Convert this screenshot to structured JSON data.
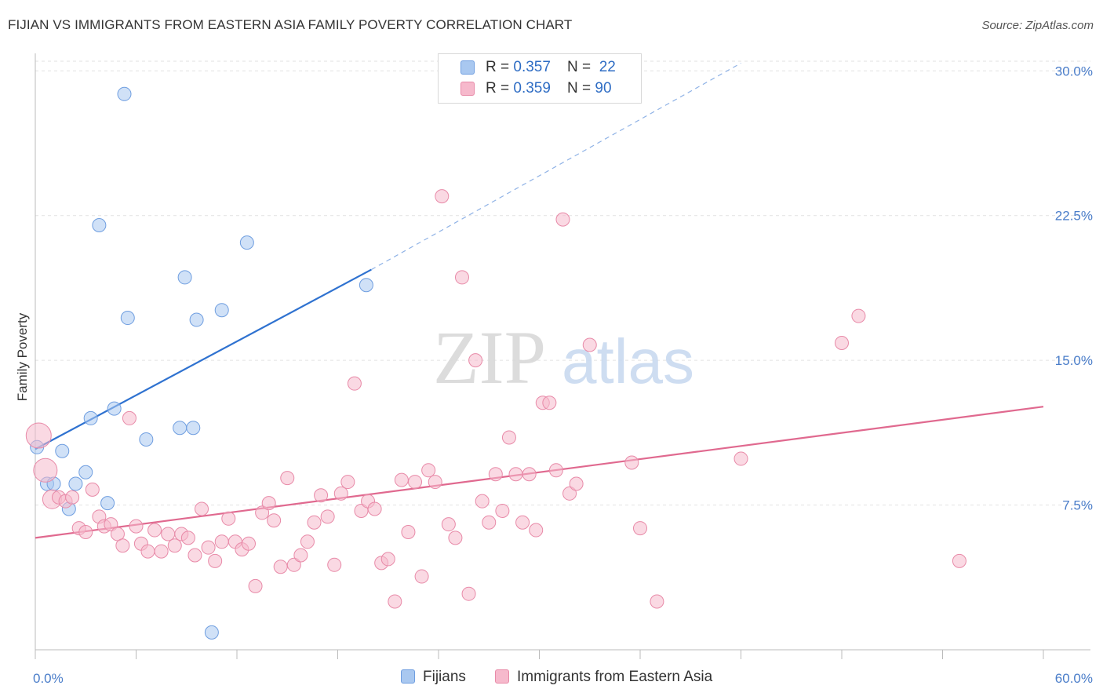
{
  "header": {
    "title": "FIJIAN VS IMMIGRANTS FROM EASTERN ASIA FAMILY POVERTY CORRELATION CHART",
    "source": "Source: ZipAtlas.com"
  },
  "watermark": {
    "zip": "ZIP",
    "atlas": "atlas"
  },
  "legend": {
    "rows": [
      {
        "r_label": "R = ",
        "r_value": "0.357",
        "n_label": "N = ",
        "n_value": "22",
        "color": "#a9c8f0",
        "border": "#6f9ee0"
      },
      {
        "r_label": "R = ",
        "r_value": "0.359",
        "n_label": "N = ",
        "n_value": "90",
        "color": "#f6b9cc",
        "border": "#e88aa8"
      }
    ]
  },
  "bottom_legend": {
    "series1": "Fijians",
    "series2": "Immigrants from Eastern Asia"
  },
  "chart_data": {
    "type": "scatter",
    "title": "FIJIAN VS IMMIGRANTS FROM EASTERN ASIA FAMILY POVERTY CORRELATION CHART",
    "xlabel": "",
    "ylabel": "Family Poverty",
    "xlim": [
      0,
      60
    ],
    "ylim": [
      0,
      30.5
    ],
    "x_tick_labels": [
      "0.0%",
      "60.0%"
    ],
    "y_ticks": [
      7.5,
      15.0,
      22.5,
      30.0
    ],
    "y_tick_labels": [
      "7.5%",
      "15.0%",
      "22.5%",
      "30.0%"
    ],
    "grid": true,
    "legend_position": "top-center",
    "series": [
      {
        "name": "Fijians",
        "color": "#a9c8f0",
        "stroke": "#6f9ee0",
        "trend_color": "#2f72d0",
        "trend": {
          "x0": 0,
          "y0": 10.4,
          "x1": 20,
          "y1": 19.7,
          "dash_to_x": 42,
          "dash_to_y": 30.4
        },
        "points": [
          {
            "x": 0.1,
            "y": 10.5
          },
          {
            "x": 0.7,
            "y": 8.6
          },
          {
            "x": 1.1,
            "y": 8.6
          },
          {
            "x": 1.6,
            "y": 10.3
          },
          {
            "x": 2.0,
            "y": 7.3
          },
          {
            "x": 2.4,
            "y": 8.6
          },
          {
            "x": 3.0,
            "y": 9.2
          },
          {
            "x": 3.3,
            "y": 12.0
          },
          {
            "x": 3.8,
            "y": 22.0
          },
          {
            "x": 4.3,
            "y": 7.6
          },
          {
            "x": 4.7,
            "y": 12.5
          },
          {
            "x": 5.3,
            "y": 28.8
          },
          {
            "x": 5.5,
            "y": 17.2
          },
          {
            "x": 6.6,
            "y": 10.9
          },
          {
            "x": 8.6,
            "y": 11.5
          },
          {
            "x": 8.9,
            "y": 19.3
          },
          {
            "x": 9.4,
            "y": 11.5
          },
          {
            "x": 9.6,
            "y": 17.1
          },
          {
            "x": 10.5,
            "y": 0.9
          },
          {
            "x": 11.1,
            "y": 17.6
          },
          {
            "x": 12.6,
            "y": 21.1
          },
          {
            "x": 19.7,
            "y": 18.9
          }
        ]
      },
      {
        "name": "Immigrants from Eastern Asia",
        "color": "#f6b9cc",
        "stroke": "#e88aa8",
        "trend_color": "#e0698f",
        "trend": {
          "x0": 0,
          "y0": 5.8,
          "x1": 60,
          "y1": 12.6
        },
        "points": [
          {
            "x": 0.2,
            "y": 11.1,
            "r": 16
          },
          {
            "x": 0.6,
            "y": 9.3,
            "r": 15
          },
          {
            "x": 1.0,
            "y": 7.8,
            "r": 12
          },
          {
            "x": 1.4,
            "y": 7.9
          },
          {
            "x": 1.8,
            "y": 7.7
          },
          {
            "x": 2.2,
            "y": 7.9
          },
          {
            "x": 2.6,
            "y": 6.3
          },
          {
            "x": 3.0,
            "y": 6.1
          },
          {
            "x": 3.4,
            "y": 8.3
          },
          {
            "x": 3.8,
            "y": 6.9
          },
          {
            "x": 4.1,
            "y": 6.4
          },
          {
            "x": 4.5,
            "y": 6.5
          },
          {
            "x": 4.9,
            "y": 6.0
          },
          {
            "x": 5.2,
            "y": 5.4
          },
          {
            "x": 5.6,
            "y": 12.0
          },
          {
            "x": 6.0,
            "y": 6.4
          },
          {
            "x": 6.3,
            "y": 5.5
          },
          {
            "x": 6.7,
            "y": 5.1
          },
          {
            "x": 7.1,
            "y": 6.2
          },
          {
            "x": 7.5,
            "y": 5.1
          },
          {
            "x": 7.9,
            "y": 6.0
          },
          {
            "x": 8.3,
            "y": 5.4
          },
          {
            "x": 8.7,
            "y": 6.0
          },
          {
            "x": 9.1,
            "y": 5.8
          },
          {
            "x": 9.5,
            "y": 4.9
          },
          {
            "x": 9.9,
            "y": 7.3
          },
          {
            "x": 10.3,
            "y": 5.3
          },
          {
            "x": 10.7,
            "y": 4.6
          },
          {
            "x": 11.1,
            "y": 5.6
          },
          {
            "x": 11.5,
            "y": 6.8
          },
          {
            "x": 11.9,
            "y": 5.6
          },
          {
            "x": 12.3,
            "y": 5.2
          },
          {
            "x": 12.7,
            "y": 5.5
          },
          {
            "x": 13.1,
            "y": 3.3
          },
          {
            "x": 13.5,
            "y": 7.1
          },
          {
            "x": 13.9,
            "y": 7.6
          },
          {
            "x": 14.2,
            "y": 6.7
          },
          {
            "x": 14.6,
            "y": 4.3
          },
          {
            "x": 15.0,
            "y": 8.9
          },
          {
            "x": 15.4,
            "y": 4.4
          },
          {
            "x": 15.8,
            "y": 4.9
          },
          {
            "x": 16.2,
            "y": 5.6
          },
          {
            "x": 16.6,
            "y": 6.6
          },
          {
            "x": 17.0,
            "y": 8.0
          },
          {
            "x": 17.4,
            "y": 6.9
          },
          {
            "x": 17.8,
            "y": 4.4
          },
          {
            "x": 18.2,
            "y": 8.1
          },
          {
            "x": 18.6,
            "y": 8.7
          },
          {
            "x": 19.0,
            "y": 13.8
          },
          {
            "x": 19.4,
            "y": 7.2
          },
          {
            "x": 19.8,
            "y": 7.7
          },
          {
            "x": 20.2,
            "y": 7.3
          },
          {
            "x": 20.6,
            "y": 4.5
          },
          {
            "x": 21.0,
            "y": 4.7
          },
          {
            "x": 21.4,
            "y": 2.5
          },
          {
            "x": 21.8,
            "y": 8.8
          },
          {
            "x": 22.2,
            "y": 6.1
          },
          {
            "x": 22.6,
            "y": 8.7
          },
          {
            "x": 23.0,
            "y": 3.8
          },
          {
            "x": 23.4,
            "y": 9.3
          },
          {
            "x": 23.8,
            "y": 8.7
          },
          {
            "x": 24.2,
            "y": 23.5
          },
          {
            "x": 24.6,
            "y": 6.5
          },
          {
            "x": 25.0,
            "y": 5.8
          },
          {
            "x": 25.4,
            "y": 19.3
          },
          {
            "x": 25.8,
            "y": 2.9
          },
          {
            "x": 26.2,
            "y": 15.0
          },
          {
            "x": 26.6,
            "y": 7.7
          },
          {
            "x": 27.0,
            "y": 6.6
          },
          {
            "x": 27.4,
            "y": 9.1
          },
          {
            "x": 27.8,
            "y": 7.2
          },
          {
            "x": 28.2,
            "y": 11.0
          },
          {
            "x": 28.6,
            "y": 9.1
          },
          {
            "x": 29.0,
            "y": 6.6
          },
          {
            "x": 29.4,
            "y": 9.1
          },
          {
            "x": 29.8,
            "y": 6.2
          },
          {
            "x": 30.2,
            "y": 12.8
          },
          {
            "x": 30.6,
            "y": 12.8
          },
          {
            "x": 31.0,
            "y": 9.3
          },
          {
            "x": 31.4,
            "y": 22.3
          },
          {
            "x": 31.8,
            "y": 8.1
          },
          {
            "x": 32.2,
            "y": 8.6
          },
          {
            "x": 33.0,
            "y": 15.8
          },
          {
            "x": 35.5,
            "y": 9.7
          },
          {
            "x": 36.0,
            "y": 6.3
          },
          {
            "x": 37.0,
            "y": 2.5
          },
          {
            "x": 42.0,
            "y": 9.9
          },
          {
            "x": 48.0,
            "y": 15.9
          },
          {
            "x": 49.0,
            "y": 17.3
          },
          {
            "x": 55.0,
            "y": 4.6
          }
        ]
      }
    ]
  }
}
